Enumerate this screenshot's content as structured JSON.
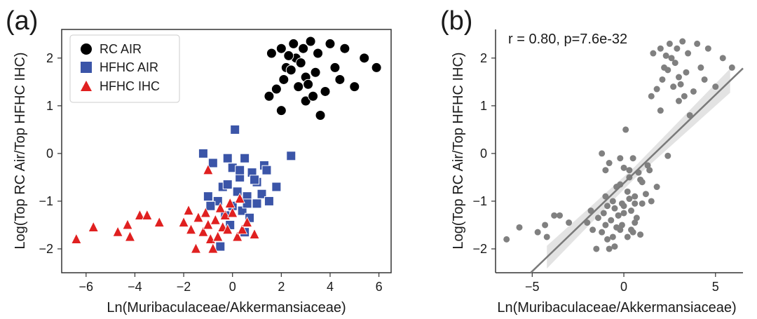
{
  "figure": {
    "panel_a_letter": "(a)",
    "panel_b_letter": "(b)"
  },
  "chart_data": [
    {
      "type": "scatter",
      "panel": "a",
      "xlabel": "Ln(Muribaculaceae/Akkermansiaceae)",
      "ylabel": "Log(Top RC Air/Top HFHC IHC)",
      "xlim": [
        -7,
        6.5
      ],
      "ylim": [
        -2.5,
        2.6
      ],
      "xticks": [
        -6,
        -4,
        -2,
        0,
        2,
        4,
        6
      ],
      "yticks": [
        -2,
        -1,
        0,
        1,
        2
      ],
      "legend_position": "top-left",
      "series": [
        {
          "name": "RC AIR",
          "marker": "circle",
          "color": "#000000",
          "points": [
            [
              1.5,
              1.2
            ],
            [
              1.8,
              1.35
            ],
            [
              2.0,
              0.9
            ],
            [
              2.2,
              1.8
            ],
            [
              2.4,
              1.75
            ],
            [
              2.6,
              2.0
            ],
            [
              2.9,
              2.2
            ],
            [
              3.0,
              1.6
            ],
            [
              3.2,
              2.35
            ],
            [
              3.5,
              2.1
            ],
            [
              2.1,
              1.55
            ],
            [
              2.5,
              2.3
            ],
            [
              2.7,
              1.4
            ],
            [
              3.0,
              1.1
            ],
            [
              3.3,
              1.2
            ],
            [
              3.6,
              0.8
            ],
            [
              4.0,
              2.3
            ],
            [
              4.2,
              1.8
            ],
            [
              4.6,
              2.2
            ],
            [
              5.0,
              1.4
            ],
            [
              5.4,
              2.0
            ],
            [
              5.9,
              1.8
            ],
            [
              1.6,
              2.1
            ],
            [
              2.3,
              2.05
            ],
            [
              3.8,
              1.3
            ],
            [
              4.4,
              1.55
            ],
            [
              2.8,
              1.9
            ],
            [
              3.4,
              1.7
            ],
            [
              3.1,
              1.45
            ],
            [
              2.0,
              2.2
            ]
          ]
        },
        {
          "name": "HFHC AIR",
          "marker": "square",
          "color": "#3b55a8",
          "points": [
            [
              0.1,
              0.5
            ],
            [
              -1.2,
              0.0
            ],
            [
              -0.2,
              -0.1
            ],
            [
              0.5,
              -0.1
            ],
            [
              2.4,
              -0.05
            ],
            [
              1.3,
              -0.25
            ],
            [
              -0.8,
              -0.2
            ],
            [
              0.0,
              -0.3
            ],
            [
              0.3,
              -0.5
            ],
            [
              0.8,
              -0.4
            ],
            [
              1.0,
              -0.6
            ],
            [
              -0.4,
              -0.7
            ],
            [
              0.2,
              -0.8
            ],
            [
              0.6,
              -0.9
            ],
            [
              1.2,
              -0.85
            ],
            [
              1.8,
              -0.7
            ],
            [
              -1.0,
              -0.9
            ],
            [
              -0.6,
              -1.0
            ],
            [
              0.0,
              -1.1
            ],
            [
              0.4,
              -1.2
            ],
            [
              1.0,
              -1.05
            ],
            [
              -0.3,
              -1.3
            ],
            [
              0.7,
              -1.35
            ],
            [
              -0.1,
              -1.5
            ],
            [
              0.5,
              -1.65
            ],
            [
              -0.5,
              -1.95
            ],
            [
              1.5,
              -1.0
            ],
            [
              0.9,
              -0.55
            ],
            [
              -0.2,
              -0.65
            ],
            [
              0.3,
              -0.35
            ],
            [
              -0.9,
              -1.1
            ],
            [
              1.4,
              -0.35
            ],
            [
              0.6,
              -1.05
            ]
          ]
        },
        {
          "name": "HFHC IHC",
          "marker": "triangle",
          "color": "#e02020",
          "points": [
            [
              -6.4,
              -1.8
            ],
            [
              -5.7,
              -1.55
            ],
            [
              -4.7,
              -1.65
            ],
            [
              -4.3,
              -1.5
            ],
            [
              -4.2,
              -1.75
            ],
            [
              -3.8,
              -1.3
            ],
            [
              -3.5,
              -1.3
            ],
            [
              -3.0,
              -1.45
            ],
            [
              -2.0,
              -1.45
            ],
            [
              -1.8,
              -1.2
            ],
            [
              -1.7,
              -1.6
            ],
            [
              -1.5,
              -2.0
            ],
            [
              -1.4,
              -1.35
            ],
            [
              -1.2,
              -1.65
            ],
            [
              -1.0,
              -1.5
            ],
            [
              -0.9,
              -1.8
            ],
            [
              -0.7,
              -1.4
            ],
            [
              -0.6,
              -1.75
            ],
            [
              -0.4,
              -1.55
            ],
            [
              -0.3,
              -1.3
            ],
            [
              -0.2,
              -1.6
            ],
            [
              0.0,
              -1.25
            ],
            [
              0.2,
              -1.75
            ],
            [
              0.4,
              -1.6
            ],
            [
              0.6,
              -1.45
            ],
            [
              0.9,
              -1.7
            ],
            [
              -0.5,
              -1.15
            ],
            [
              -1.1,
              -1.25
            ],
            [
              -0.8,
              -2.0
            ],
            [
              0.3,
              -0.95
            ],
            [
              -1.0,
              -0.35
            ],
            [
              -0.1,
              -1.05
            ]
          ]
        }
      ]
    },
    {
      "type": "scatter",
      "panel": "b",
      "xlabel": "Ln(Muribaculaceae/Akkermansiaceae)",
      "ylabel": "Log(Top RC Air/Top HFHC IHC)",
      "xlim": [
        -7,
        6.5
      ],
      "ylim": [
        -2.5,
        2.6
      ],
      "xticks": [
        -5,
        0,
        5
      ],
      "yticks": [
        -2,
        -1,
        0,
        1,
        2
      ],
      "annotation": "r = 0.80, p=7.6e-32",
      "marker_color": "#808080",
      "regression": {
        "slope": 0.37,
        "intercept": -0.62
      },
      "points": []
    }
  ]
}
